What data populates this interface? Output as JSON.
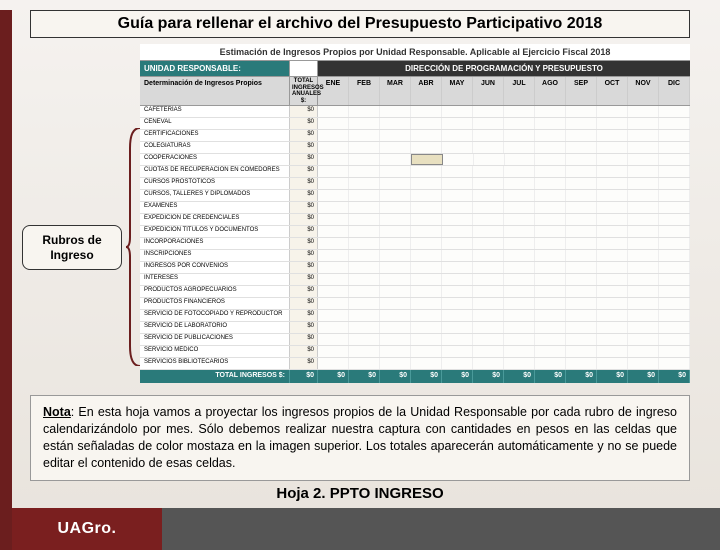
{
  "colors": {
    "accent_dark_red": "#6b1e1e",
    "teal": "#2a7a7a",
    "header_dark": "#333333",
    "light_bg": "#f8f5f0",
    "grid_light": "#e0e0e0",
    "mustard_highlight": "#e8e0c0",
    "footer_gray": "#555555",
    "footer_red": "#7a1f1f"
  },
  "title": "Guía para rellenar el archivo del Presupuesto Participativo 2018",
  "spreadsheet": {
    "caption": "Estimación de Ingresos Propios por Unidad Responsable. Aplicable al Ejercicio Fiscal 2018",
    "ur_label": "UNIDAD RESPONSABLE:",
    "direction_label": "DIRECCIÓN DE PROGRAMACIÓN Y PRESUPUESTO",
    "det_label": "Determinación de Ingresos Propios",
    "total_col_label": "TOTAL INGRESOS ANUALES $:",
    "months": [
      "ENE",
      "FEB",
      "MAR",
      "ABR",
      "MAY",
      "JUN",
      "JUL",
      "AGO",
      "SEP",
      "OCT",
      "NOV",
      "DIC"
    ],
    "rows": [
      "CAFETERÍAS",
      "CENEVAL",
      "CERTIFICACIONES",
      "COLEGIATURAS",
      "COOPERACIONES",
      "CUOTAS DE RECUPERACIÓN EN COMEDORES",
      "CURSOS PROSTÓTICOS",
      "CURSOS, TALLERES Y DIPLOMADOS",
      "EXÁMENES",
      "EXPEDICIÓN DE CREDENCIALES",
      "EXPEDICIÓN TÍTULOS Y DOCUMENTOS",
      "INCORPORACIONES",
      "INSCRIPCIONES",
      "INGRESOS POR CONVENIOS",
      "INTERESES",
      "PRODUCTOS AGROPECUARIOS",
      "PRODUCTOS FINANCIEROS",
      "SERVICIO DE FOTOCOPIADO Y REPRODUCTOR",
      "SERVICIO DE LABORATORIO",
      "SERVICIO DE PUBLICACIONES",
      "SERVICIO MÉDICO",
      "SERVICIOS BIBLIOTECARIOS"
    ],
    "row_total_value": "$0",
    "highlight_cell": {
      "row_index": 4,
      "month_index": 3
    },
    "grand_total_label": "TOTAL INGRESOS $:",
    "grand_total_value": "$0",
    "month_total_value": "$0"
  },
  "callout": {
    "line1": "Rubros de",
    "line2": "Ingreso"
  },
  "note": {
    "lead": "Nota",
    "text": ": En esta hoja vamos a proyectar los ingresos propios de la Unidad Responsable por cada rubro de ingreso calendarizándolo por mes. Sólo debemos realizar nuestra captura con cantidades en pesos en las celdas que están señaladas de color mostaza en la imagen superior. Los totales aparecerán automáticamente y no se puede editar el contenido de esas celdas."
  },
  "sheet_label": "Hoja 2. PPTO INGRESO",
  "footer_logo": "UAGro."
}
